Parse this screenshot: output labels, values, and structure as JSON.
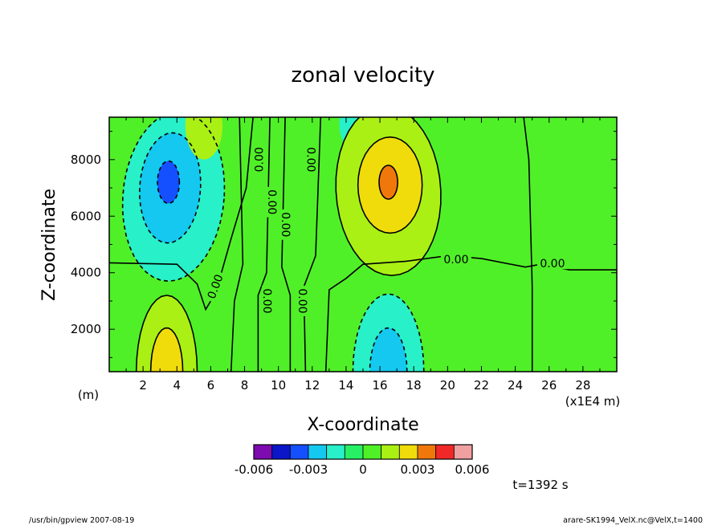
{
  "chart_data": {
    "type": "heatmap",
    "title": "zonal velocity",
    "xlabel": "X-coordinate",
    "ylabel": "Z-coordinate",
    "x_unit_left": "(m)",
    "x_unit_right": "(x1E4 m)",
    "xlim": [
      0,
      30
    ],
    "ylim": [
      500,
      9500
    ],
    "x_ticks": [
      2,
      4,
      6,
      8,
      10,
      12,
      14,
      16,
      18,
      20,
      22,
      24,
      26,
      28
    ],
    "y_ticks": [
      2000,
      4000,
      6000,
      8000
    ],
    "contour_label": "0.00",
    "contour_levels": [
      -0.006,
      -0.005,
      -0.004,
      -0.003,
      -0.002,
      -0.001,
      0,
      0.001,
      0.002,
      0.003,
      0.004,
      0.005,
      0.006
    ],
    "colorbar": {
      "colors": [
        "#7d0bb0",
        "#0a16c8",
        "#1450ff",
        "#14c8f0",
        "#28f0c8",
        "#28f064",
        "#50f028",
        "#aaf014",
        "#f0dc0a",
        "#f0780a",
        "#f02828",
        "#f0a0a0"
      ],
      "tick_labels": [
        "-0.006",
        "-0.003",
        "0",
        "0.003",
        "0.006"
      ]
    },
    "series": [
      {
        "type": "negative-lobe",
        "x": 3.5,
        "z": 7200,
        "peak": -0.004
      },
      {
        "type": "positive-lobe",
        "x": 16.5,
        "z": 7200,
        "peak": 0.004
      },
      {
        "type": "positive-lobe",
        "x": 3.4,
        "z": 500,
        "peak": 0.003
      },
      {
        "type": "negative-lobe",
        "x": 16.5,
        "z": 500,
        "peak": -0.003
      }
    ],
    "time_label": "t=1392 s"
  },
  "footer": {
    "left": "/usr/bin/gpview   2007-08-19",
    "right": "arare-SK1994_VelX.nc@VelX,t=1400"
  }
}
